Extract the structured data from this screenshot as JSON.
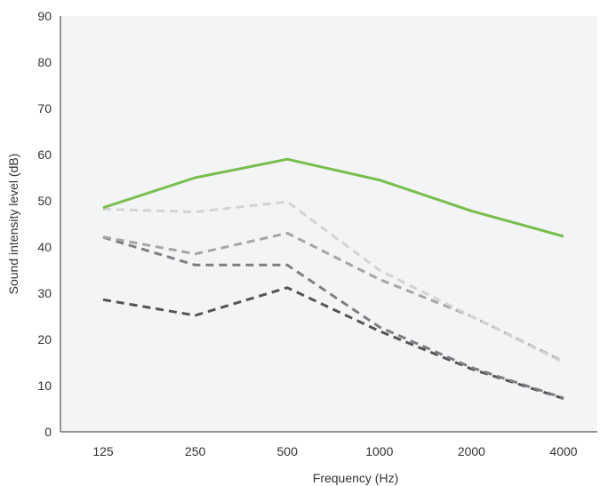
{
  "chart_data": {
    "type": "line",
    "title": "",
    "xlabel": "Frequency (Hz)",
    "ylabel": "Sound intensity level (dB)",
    "categories": [
      "125",
      "250",
      "500",
      "1000",
      "2000",
      "4000"
    ],
    "ylim": [
      0,
      90
    ],
    "yticks": [
      "0",
      "10",
      "20",
      "30",
      "40",
      "50",
      "60",
      "70",
      "80",
      "90"
    ],
    "grid": false,
    "legend": "none",
    "plot_background": "#f2f4f6",
    "series": [
      {
        "values": [
          48.5,
          55,
          59,
          54.5,
          47.8,
          42.3
        ],
        "color": "#77bd4c",
        "style": "solid"
      },
      {
        "values": [
          48.2,
          47.6,
          49.8,
          35,
          25,
          15
        ],
        "color": "#d2d3d4",
        "style": "dashed"
      },
      {
        "values": [
          42.2,
          38.5,
          43,
          33,
          25,
          15.2
        ],
        "color": "#a4a5a7",
        "style": "dashed"
      },
      {
        "values": [
          42.1,
          36.1,
          36.1,
          22.7,
          13.9,
          7.3
        ],
        "color": "#7d7e80",
        "style": "dashed"
      },
      {
        "values": [
          28.6,
          25.2,
          31.2,
          21.8,
          13.6,
          7.2
        ],
        "color": "#535456",
        "style": "dashed"
      }
    ]
  }
}
